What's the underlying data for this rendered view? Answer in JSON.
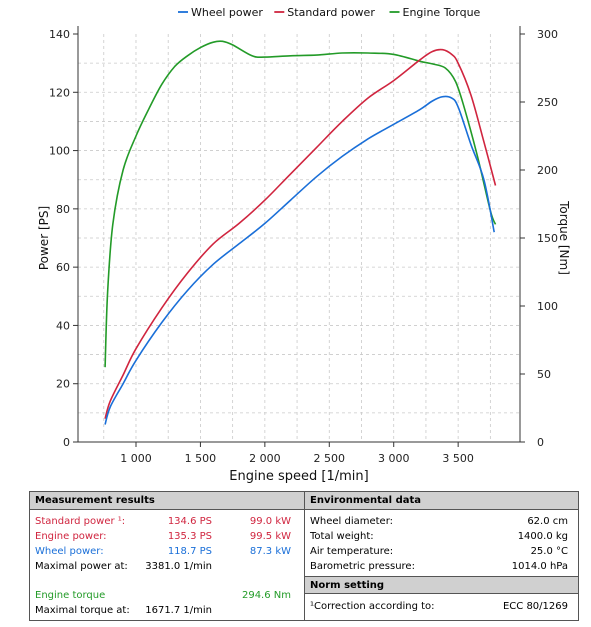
{
  "colors": {
    "wheel": "#1a6fd8",
    "standard": "#d0253f",
    "torque": "#239b28",
    "axis": "#333333",
    "grid": "#c9c9c9"
  },
  "chart_data": {
    "type": "line",
    "xlabel": "Engine speed [1/min]",
    "ylabel_left": "Power [PS]",
    "ylabel_right": "Torque [Nm]",
    "xlim": [
      550,
      3980
    ],
    "ylim_left": [
      0,
      140
    ],
    "ylim_right": [
      0,
      300
    ],
    "x_ticks": [
      {
        "v": 1000,
        "label": "1 000"
      },
      {
        "v": 1500,
        "label": "1 500"
      },
      {
        "v": 2000,
        "label": "2 000"
      },
      {
        "v": 2500,
        "label": "2 500"
      },
      {
        "v": 3000,
        "label": "3 000"
      },
      {
        "v": 3500,
        "label": "3 500"
      }
    ],
    "y_left_ticks": [
      {
        "v": 0,
        "label": "0"
      },
      {
        "v": 20,
        "label": "20"
      },
      {
        "v": 40,
        "label": "40"
      },
      {
        "v": 60,
        "label": "60"
      },
      {
        "v": 80,
        "label": "80"
      },
      {
        "v": 100,
        "label": "100"
      },
      {
        "v": 120,
        "label": "120"
      },
      {
        "v": 140,
        "label": "140"
      }
    ],
    "y_right_ticks": [
      {
        "v": 0,
        "label": "0"
      },
      {
        "v": 50,
        "label": "50"
      },
      {
        "v": 100,
        "label": "100"
      },
      {
        "v": 150,
        "label": "150"
      },
      {
        "v": 200,
        "label": "200"
      },
      {
        "v": 250,
        "label": "250"
      },
      {
        "v": 300,
        "label": "300"
      }
    ],
    "legend_position": "top",
    "grid": true,
    "series": [
      {
        "name": "Wheel power",
        "axis": "left",
        "color": "#1a6fd8",
        "x": [
          760,
          800,
          900,
          1000,
          1200,
          1400,
          1600,
          1800,
          2000,
          2200,
          2400,
          2600,
          2800,
          3000,
          3200,
          3300,
          3380,
          3450,
          3500,
          3600,
          3700,
          3780
        ],
        "y": [
          6,
          12,
          20,
          28,
          41,
          52,
          61,
          68,
          75,
          83,
          91,
          98,
          104,
          109,
          114,
          117,
          118.5,
          118,
          115,
          102,
          90,
          72
        ]
      },
      {
        "name": "Standard power",
        "axis": "left",
        "color": "#d0253f",
        "x": [
          760,
          800,
          900,
          1000,
          1200,
          1400,
          1600,
          1800,
          2000,
          2200,
          2400,
          2600,
          2800,
          3000,
          3200,
          3300,
          3380,
          3450,
          3500,
          3600,
          3700,
          3790
        ],
        "y": [
          8,
          14,
          23,
          32,
          46,
          58,
          68,
          75,
          83,
          92,
          101,
          110,
          118,
          124,
          131,
          134,
          134.6,
          133,
          130,
          119,
          103,
          88
        ]
      },
      {
        "name": "Engine Torque",
        "axis": "right",
        "color": "#239b28",
        "x": [
          760,
          780,
          820,
          900,
          1000,
          1100,
          1200,
          1300,
          1400,
          1500,
          1600,
          1672,
          1750,
          1900,
          2000,
          2200,
          2400,
          2600,
          2800,
          3000,
          3200,
          3300,
          3400,
          3480,
          3550,
          3650,
          3750,
          3790
        ],
        "y": [
          55,
          110,
          160,
          200,
          225,
          245,
          263,
          276,
          284,
          290,
          294,
          294.6,
          292,
          284,
          283,
          284,
          284.5,
          286,
          286,
          285,
          280,
          278,
          275,
          265,
          245,
          210,
          170,
          160
        ]
      }
    ]
  },
  "measurement": {
    "title": "Measurement results",
    "rows": [
      {
        "label": "Standard power ¹:",
        "v1": "134.6  PS",
        "v2": "99.0  kW",
        "color": "#d0253f"
      },
      {
        "label": "Engine power:",
        "v1": "135.3  PS",
        "v2": "99.5  kW",
        "color": "#d0253f"
      },
      {
        "label": "Wheel power:",
        "v1": "118.7  PS",
        "v2": "87.3  kW",
        "color": "#1a6fd8"
      },
      {
        "label": "Maximal power at:",
        "v1": "3381.0  1/min",
        "v2": "",
        "color": "#000000"
      },
      {
        "label": "Engine torque",
        "v1": "",
        "v2": "294.6  Nm",
        "color": "#239b28"
      },
      {
        "label": "Maximal torque at:",
        "v1": "1671.7  1/min",
        "v2": "",
        "color": "#000000"
      }
    ]
  },
  "environment": {
    "title": "Environmental data",
    "rows": [
      {
        "label": "Wheel diameter:",
        "value": "62.0  cm"
      },
      {
        "label": "Total weight:",
        "value": "1400.0  kg"
      },
      {
        "label": "Air temperature:",
        "value": "25.0  °C"
      },
      {
        "label": "Barometric pressure:",
        "value": "1014.0  hPa"
      }
    ]
  },
  "norm": {
    "title": "Norm setting",
    "label": "¹Correction according to:",
    "value": "ECC 80/1269"
  }
}
